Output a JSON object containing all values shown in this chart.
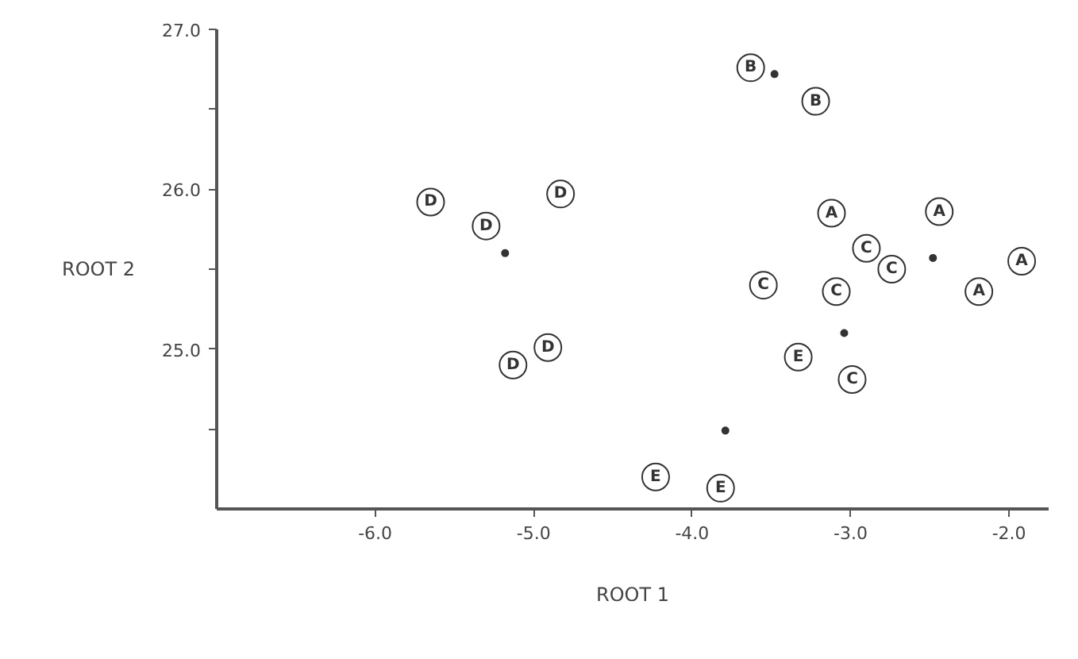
{
  "chart_data": {
    "type": "scatter",
    "xlabel": "ROOT 1",
    "ylabel": "ROOT 2",
    "xlim": [
      -7.0,
      -1.75
    ],
    "ylim": [
      24.0,
      27.0
    ],
    "xticks": [
      {
        "value": -6,
        "label": "-6.0"
      },
      {
        "value": -5,
        "label": "-5.0"
      },
      {
        "value": -4,
        "label": "-4.0"
      },
      {
        "value": -3,
        "label": "-3.0"
      },
      {
        "value": -2,
        "label": "-2.0"
      }
    ],
    "yticks": [
      {
        "value": 24.5,
        "label": null
      },
      {
        "value": 25,
        "label": "25.0"
      },
      {
        "value": 25.5,
        "label": null
      },
      {
        "value": 26,
        "label": "26.0"
      },
      {
        "value": 26.5,
        "label": null
      },
      {
        "value": 27,
        "label": "27.0"
      }
    ],
    "grid": false,
    "series": [
      {
        "name": "A",
        "color": "#333333",
        "x": [
          -3.12,
          -2.44,
          -1.92,
          -2.19
        ],
        "values": [
          25.85,
          25.86,
          25.55,
          25.36
        ]
      },
      {
        "name": "B",
        "color": "#333333",
        "x": [
          -3.63,
          -3.22
        ],
        "values": [
          26.76,
          26.55
        ]
      },
      {
        "name": "C",
        "color": "#333333",
        "x": [
          -3.55,
          -3.09,
          -2.9,
          -2.74,
          -2.99
        ],
        "values": [
          25.4,
          25.36,
          25.63,
          25.5,
          24.81
        ]
      },
      {
        "name": "D",
        "color": "#333333",
        "x": [
          -5.65,
          -5.3,
          -4.83,
          -5.13,
          -4.91
        ],
        "values": [
          25.92,
          25.77,
          25.97,
          24.9,
          25.01
        ]
      },
      {
        "name": "E",
        "color": "#333333",
        "x": [
          -3.33,
          -4.23,
          -3.82
        ],
        "values": [
          24.95,
          24.2,
          24.13
        ]
      },
      {
        "color": "#333333",
        "marker": "circle",
        "x": [
          -2.48,
          -3.48,
          -3.04,
          -5.18,
          -3.79
        ],
        "values": [
          25.57,
          26.72,
          25.1,
          25.6,
          24.49
        ]
      }
    ]
  }
}
